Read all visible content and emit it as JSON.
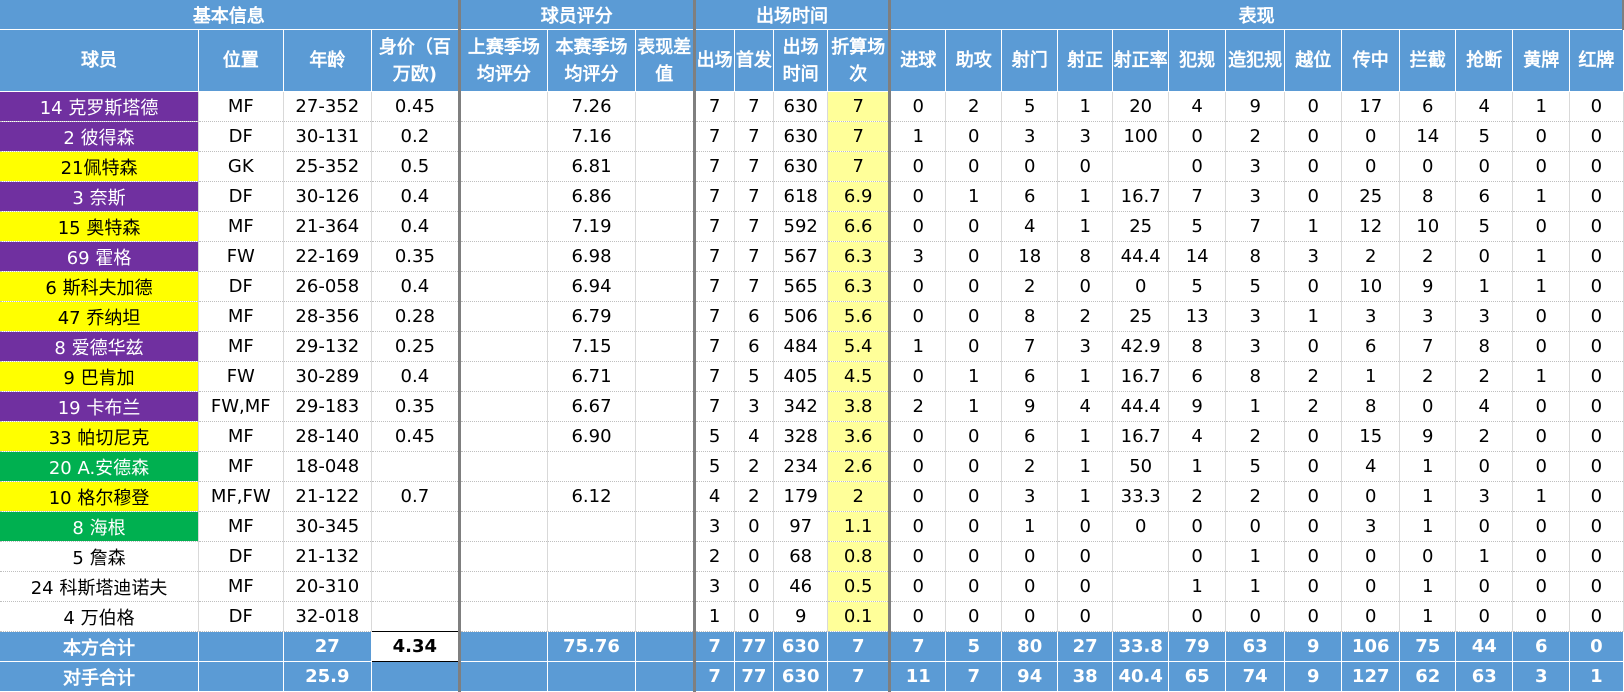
{
  "colors": {
    "header_blue": "#5b9bd5",
    "purple": "#7030a0",
    "yellow": "#ffff00",
    "green": "#00b050",
    "white": "#ffffff",
    "highlight_column": "#ffff99"
  },
  "group_headers": [
    "基本信息",
    "球员评分",
    "出场时间",
    "表现"
  ],
  "columns": [
    "球员",
    "位置",
    "年龄",
    "身价（百万欧)",
    "上赛季场均评分",
    "本赛季场均评分",
    "表现差值",
    "出场",
    "首发",
    "出场时间",
    "折算场次",
    "进球",
    "助攻",
    "射门",
    "射正",
    "射正率",
    "犯规",
    "造犯规",
    "越位",
    "传中",
    "拦截",
    "抢断",
    "黄牌",
    "红牌"
  ],
  "rows": [
    {
      "player": "14 克罗斯塔德",
      "bg": "purple",
      "cells": [
        "MF",
        "27-352",
        "0.45",
        "",
        "7.26",
        "",
        "7",
        "7",
        "630",
        "7",
        "0",
        "2",
        "5",
        "1",
        "20",
        "4",
        "9",
        "0",
        "17",
        "6",
        "4",
        "1",
        "0"
      ]
    },
    {
      "player": "2 彼得森",
      "bg": "purple",
      "cells": [
        "DF",
        "30-131",
        "0.2",
        "",
        "7.16",
        "",
        "7",
        "7",
        "630",
        "7",
        "1",
        "0",
        "3",
        "3",
        "100",
        "0",
        "2",
        "0",
        "0",
        "14",
        "5",
        "0",
        "0"
      ]
    },
    {
      "player": "21佩特森",
      "bg": "yellow",
      "cells": [
        "GK",
        "25-352",
        "0.5",
        "",
        "6.81",
        "",
        "7",
        "7",
        "630",
        "7",
        "0",
        "0",
        "0",
        "0",
        "",
        "0",
        "3",
        "0",
        "0",
        "0",
        "0",
        "0",
        "0"
      ]
    },
    {
      "player": "3 奈斯",
      "bg": "purple",
      "cells": [
        "DF",
        "30-126",
        "0.4",
        "",
        "6.86",
        "",
        "7",
        "7",
        "618",
        "6.9",
        "0",
        "1",
        "6",
        "1",
        "16.7",
        "7",
        "3",
        "0",
        "25",
        "8",
        "6",
        "1",
        "0"
      ]
    },
    {
      "player": "15 奥特森",
      "bg": "yellow",
      "cells": [
        "MF",
        "21-364",
        "0.4",
        "",
        "7.19",
        "",
        "7",
        "7",
        "592",
        "6.6",
        "0",
        "0",
        "4",
        "1",
        "25",
        "5",
        "7",
        "1",
        "12",
        "10",
        "5",
        "0",
        "0"
      ]
    },
    {
      "player": "69 霍格",
      "bg": "purple",
      "cells": [
        "FW",
        "22-169",
        "0.35",
        "",
        "6.98",
        "",
        "7",
        "7",
        "567",
        "6.3",
        "3",
        "0",
        "18",
        "8",
        "44.4",
        "14",
        "8",
        "3",
        "2",
        "2",
        "0",
        "1",
        "0"
      ]
    },
    {
      "player": "6 斯科夫加德",
      "bg": "yellow",
      "cells": [
        "DF",
        "26-058",
        "0.4",
        "",
        "6.94",
        "",
        "7",
        "7",
        "565",
        "6.3",
        "0",
        "0",
        "2",
        "0",
        "0",
        "5",
        "5",
        "0",
        "10",
        "9",
        "1",
        "1",
        "0"
      ]
    },
    {
      "player": "47 乔纳坦",
      "bg": "yellow",
      "cells": [
        "MF",
        "28-356",
        "0.28",
        "",
        "6.79",
        "",
        "7",
        "6",
        "506",
        "5.6",
        "0",
        "0",
        "8",
        "2",
        "25",
        "13",
        "3",
        "1",
        "3",
        "3",
        "3",
        "0",
        "0"
      ]
    },
    {
      "player": "8 爱德华兹",
      "bg": "purple",
      "cells": [
        "MF",
        "29-132",
        "0.25",
        "",
        "7.15",
        "",
        "7",
        "6",
        "484",
        "5.4",
        "1",
        "0",
        "7",
        "3",
        "42.9",
        "8",
        "3",
        "0",
        "6",
        "7",
        "8",
        "0",
        "0"
      ]
    },
    {
      "player": "9 巴肯加",
      "bg": "yellow",
      "cells": [
        "FW",
        "30-289",
        "0.4",
        "",
        "6.71",
        "",
        "7",
        "5",
        "405",
        "4.5",
        "0",
        "1",
        "6",
        "1",
        "16.7",
        "6",
        "8",
        "2",
        "1",
        "2",
        "2",
        "1",
        "0"
      ]
    },
    {
      "player": "19 卡布兰",
      "bg": "purple",
      "cells": [
        "FW,MF",
        "29-183",
        "0.35",
        "",
        "6.67",
        "",
        "7",
        "3",
        "342",
        "3.8",
        "2",
        "1",
        "9",
        "4",
        "44.4",
        "9",
        "1",
        "2",
        "8",
        "0",
        "4",
        "0",
        "0"
      ]
    },
    {
      "player": "33 帕切尼克",
      "bg": "yellow",
      "cells": [
        "MF",
        "28-140",
        "0.45",
        "",
        "6.90",
        "",
        "5",
        "4",
        "328",
        "3.6",
        "0",
        "0",
        "6",
        "1",
        "16.7",
        "4",
        "2",
        "0",
        "15",
        "9",
        "2",
        "0",
        "0"
      ]
    },
    {
      "player": "20 A.安德森",
      "bg": "green",
      "cells": [
        "MF",
        "18-048",
        "",
        "",
        "",
        "",
        "5",
        "2",
        "234",
        "2.6",
        "0",
        "0",
        "2",
        "1",
        "50",
        "1",
        "5",
        "0",
        "4",
        "1",
        "0",
        "0",
        "0"
      ]
    },
    {
      "player": "10 格尔穆登",
      "bg": "yellow",
      "cells": [
        "MF,FW",
        "21-122",
        "0.7",
        "",
        "6.12",
        "",
        "4",
        "2",
        "179",
        "2",
        "0",
        "0",
        "3",
        "1",
        "33.3",
        "2",
        "2",
        "0",
        "0",
        "1",
        "3",
        "1",
        "0"
      ]
    },
    {
      "player": "8 海根",
      "bg": "green",
      "cells": [
        "MF",
        "30-345",
        "",
        "",
        "",
        "",
        "3",
        "0",
        "97",
        "1.1",
        "0",
        "0",
        "1",
        "0",
        "0",
        "0",
        "0",
        "0",
        "3",
        "1",
        "0",
        "0",
        "0"
      ]
    },
    {
      "player": "5 詹森",
      "bg": "white",
      "cells": [
        "DF",
        "21-132",
        "",
        "",
        "",
        "",
        "2",
        "0",
        "68",
        "0.8",
        "0",
        "0",
        "0",
        "0",
        "",
        "0",
        "1",
        "0",
        "0",
        "0",
        "1",
        "0",
        "0"
      ]
    },
    {
      "player": "24 科斯塔迪诺夫",
      "bg": "white",
      "cells": [
        "MF",
        "20-310",
        "",
        "",
        "",
        "",
        "3",
        "0",
        "46",
        "0.5",
        "0",
        "0",
        "0",
        "0",
        "",
        "1",
        "1",
        "0",
        "0",
        "1",
        "0",
        "0",
        "0"
      ]
    },
    {
      "player": "4 万伯格",
      "bg": "white",
      "cells": [
        "DF",
        "32-018",
        "",
        "",
        "",
        "",
        "1",
        "0",
        "9",
        "0.1",
        "0",
        "0",
        "0",
        "0",
        "",
        "0",
        "0",
        "0",
        "0",
        "1",
        "0",
        "0",
        "0"
      ]
    }
  ],
  "totals": [
    {
      "label": "本方合计",
      "cells": [
        "",
        "27",
        "4.34",
        "",
        "75.76",
        "",
        "7",
        "77",
        "630",
        "7",
        "7",
        "5",
        "80",
        "27",
        "33.8",
        "79",
        "63",
        "9",
        "106",
        "75",
        "44",
        "6",
        "0"
      ]
    },
    {
      "label": "对手合计",
      "cells": [
        "",
        "25.9",
        "",
        "",
        "",
        "",
        "7",
        "77",
        "630",
        "7",
        "11",
        "7",
        "94",
        "38",
        "40.4",
        "65",
        "74",
        "9",
        "127",
        "62",
        "63",
        "3",
        "1"
      ]
    }
  ]
}
